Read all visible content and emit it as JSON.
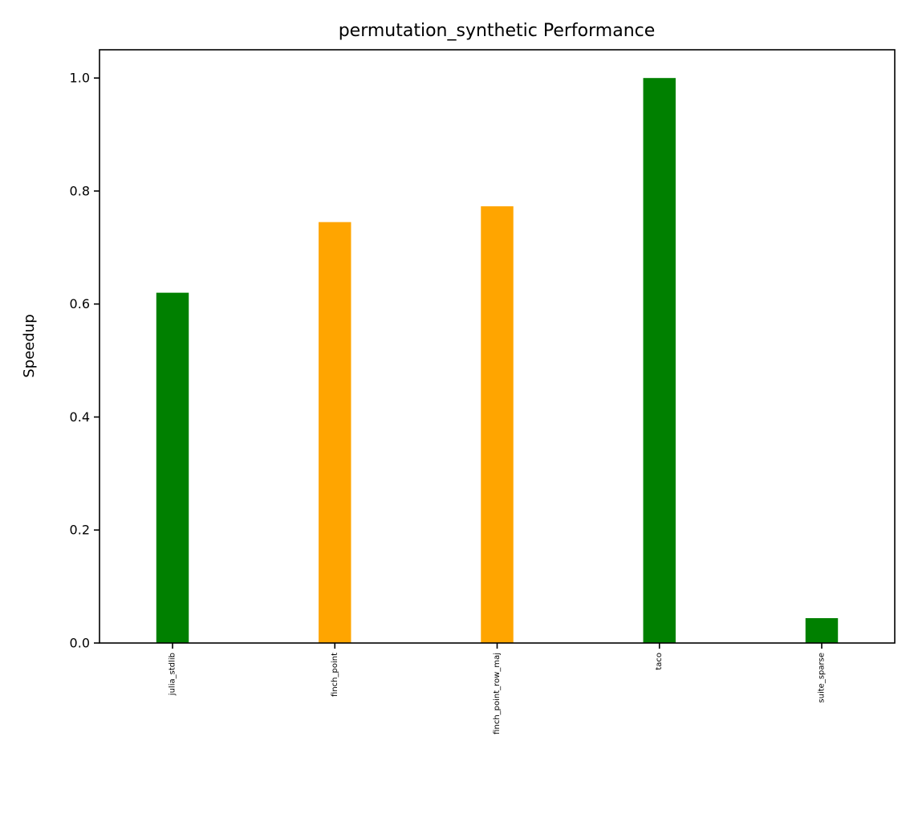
{
  "chart_data": {
    "type": "bar",
    "title": "permutation_synthetic Performance",
    "xlabel": "",
    "ylabel": "Speedup",
    "categories": [
      "julia_stdlib",
      "finch_point",
      "finch_point_row_maj",
      "taco",
      "suite_sparse"
    ],
    "values": [
      0.62,
      0.745,
      0.773,
      1.0,
      0.044
    ],
    "colors": [
      "#008000",
      "#ffa500",
      "#ffa500",
      "#008000",
      "#008000"
    ],
    "ylim": [
      0,
      1.05
    ],
    "yticks": [
      0.0,
      0.2,
      0.4,
      0.6,
      0.8,
      1.0
    ],
    "ytick_labels": [
      "0.0",
      "0.2",
      "0.4",
      "0.6",
      "0.8",
      "1.0"
    ],
    "grid": false,
    "legend": "none"
  }
}
